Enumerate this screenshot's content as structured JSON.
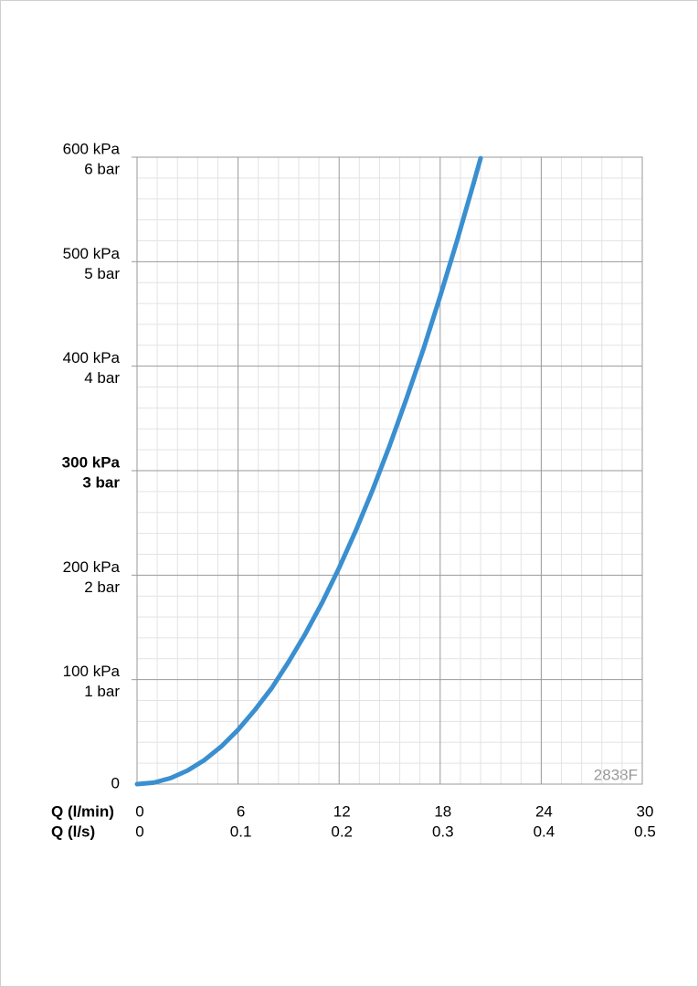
{
  "chart_data": {
    "type": "line",
    "x_axis_label": "Q (l/min)",
    "x2_axis_label": "Q (l/s)",
    "xlim": [
      0,
      30
    ],
    "xticks": [
      0,
      6,
      12,
      18,
      24,
      30
    ],
    "x2lim": [
      0,
      0.5
    ],
    "x2ticks": [
      0,
      0.1,
      0.2,
      0.3,
      0.4,
      0.5
    ],
    "ylim": [
      0,
      600
    ],
    "yticks": [
      0,
      {
        "value": 100,
        "label": "100 kPa"
      },
      {
        "value": 200,
        "label": "200 kPa"
      },
      {
        "value": 300,
        "label": "300 kPa"
      },
      {
        "value": 400,
        "label": "400 kPa"
      },
      {
        "value": 500,
        "label": "500 kPa"
      },
      {
        "value": 600,
        "label": "600 kPa"
      }
    ],
    "ybar_ticks": [
      {
        "value": 100,
        "label": "1 bar"
      },
      {
        "value": 200,
        "label": "2 bar"
      },
      {
        "value": 300,
        "label": "3 bar"
      },
      {
        "value": 400,
        "label": "4 bar"
      },
      {
        "value": 500,
        "label": "5 bar"
      },
      {
        "value": 600,
        "label": "6 bar"
      }
    ],
    "highlight_ytick": 300,
    "grid": true,
    "minor_grid": true,
    "annotation": "2838F",
    "x": [
      0,
      1,
      2,
      3,
      4,
      5,
      6,
      7,
      8,
      9,
      10,
      11,
      12,
      13,
      14,
      15,
      16,
      17,
      18,
      19,
      20,
      20.4
    ],
    "series": [
      {
        "color": "#3a8fd0",
        "values": [
          0,
          1.4,
          5.8,
          13,
          23,
          36,
          52,
          71,
          92,
          117,
          144,
          174,
          207,
          243,
          282,
          324,
          369,
          416,
          467,
          520,
          576,
          599
        ]
      }
    ]
  }
}
